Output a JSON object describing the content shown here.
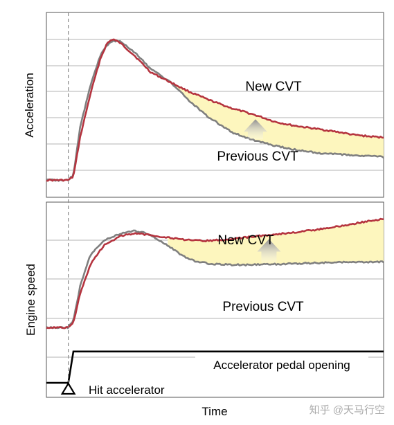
{
  "chart_data": [
    {
      "type": "line",
      "ylabel": "Acceleration",
      "x": [
        0,
        4,
        6.5,
        8,
        10,
        13,
        16,
        18,
        19.7,
        22,
        26,
        31,
        37,
        42,
        48,
        55,
        62,
        68,
        73,
        80,
        87,
        91,
        96,
        100
      ],
      "series": [
        {
          "name": "New CVT",
          "values": [
            -0.5,
            -0.5,
            -0.5,
            -0.3,
            2.0,
            4.5,
            6.6,
            7.5,
            7.75,
            7.5,
            6.8,
            5.8,
            5.2,
            4.7,
            4.2,
            3.7,
            3.3,
            2.9,
            2.7,
            2.5,
            2.3,
            2.15,
            2.05,
            2.0
          ]
        },
        {
          "name": "Previous CVT",
          "values": [
            -0.5,
            -0.5,
            -0.5,
            -0.2,
            2.6,
            5.0,
            6.8,
            7.4,
            7.65,
            7.6,
            7.0,
            6.0,
            5.2,
            4.2,
            3.2,
            2.3,
            1.8,
            1.5,
            1.3,
            1.1,
            1.0,
            0.95,
            0.9,
            0.85
          ]
        }
      ],
      "ylim": [
        -1.5,
        9.3
      ],
      "xlim": [
        0,
        100
      ],
      "grid": "horizontal",
      "annotation": "arrow up from Previous CVT to New CVT over shaded area"
    },
    {
      "type": "line",
      "ylabel": "Engine speed",
      "x": [
        0,
        4,
        6.5,
        8,
        10,
        13,
        17,
        22,
        26,
        30,
        35,
        40,
        44,
        48,
        54,
        60,
        67,
        74,
        80,
        87,
        93,
        97,
        100
      ],
      "series": [
        {
          "name": "New CVT",
          "values": [
            0,
            0,
            0,
            0.2,
            1.4,
            2.6,
            3.4,
            3.8,
            3.9,
            3.85,
            3.75,
            3.65,
            3.6,
            3.6,
            3.65,
            3.75,
            3.85,
            3.95,
            4.05,
            4.2,
            4.35,
            4.45,
            4.5
          ]
        },
        {
          "name": "Previous CVT",
          "values": [
            0,
            0,
            0,
            0.3,
            1.7,
            3.0,
            3.6,
            3.9,
            4.0,
            3.9,
            3.5,
            3.0,
            2.75,
            2.65,
            2.6,
            2.6,
            2.62,
            2.65,
            2.68,
            2.7,
            2.7,
            2.72,
            2.72
          ]
        },
        {
          "name": "Accelerator pedal opening",
          "values": [
            -2.3,
            -2.3,
            -2.3,
            -1.0,
            -1.0,
            -1.0,
            -1.0,
            -1.0,
            -1.0,
            -1.0,
            -1.0,
            -1.0,
            -1.0,
            -1.0,
            -1.0,
            -1.0,
            -1.0,
            -1.0,
            -1.0,
            -1.0,
            -1.0,
            -1.0,
            -1.0
          ]
        }
      ],
      "ylim": [
        -2.9,
        5.2
      ],
      "xlim": [
        0,
        100
      ],
      "grid": "horizontal",
      "annotation": "arrow up from Previous CVT to New CVT over shaded area"
    }
  ],
  "labels": {
    "top_new": "New CVT",
    "top_prev": "Previous CVT",
    "bottom_new": "New CVT",
    "bottom_prev": "Previous CVT",
    "pedal": "Accelerator pedal opening",
    "hit": "Hit accelerator",
    "xlabel": "Time",
    "ylabel_top": "Acceleration",
    "ylabel_bottom": "Engine speed",
    "watermark": "知乎 @天马行空"
  },
  "colors": {
    "new": "#b5343f",
    "previous": "#7f7f7f",
    "fill": "#fdf6be",
    "grid": "#9a9a9a",
    "arrow": "#8c8c8c",
    "pedal": "#000000"
  }
}
